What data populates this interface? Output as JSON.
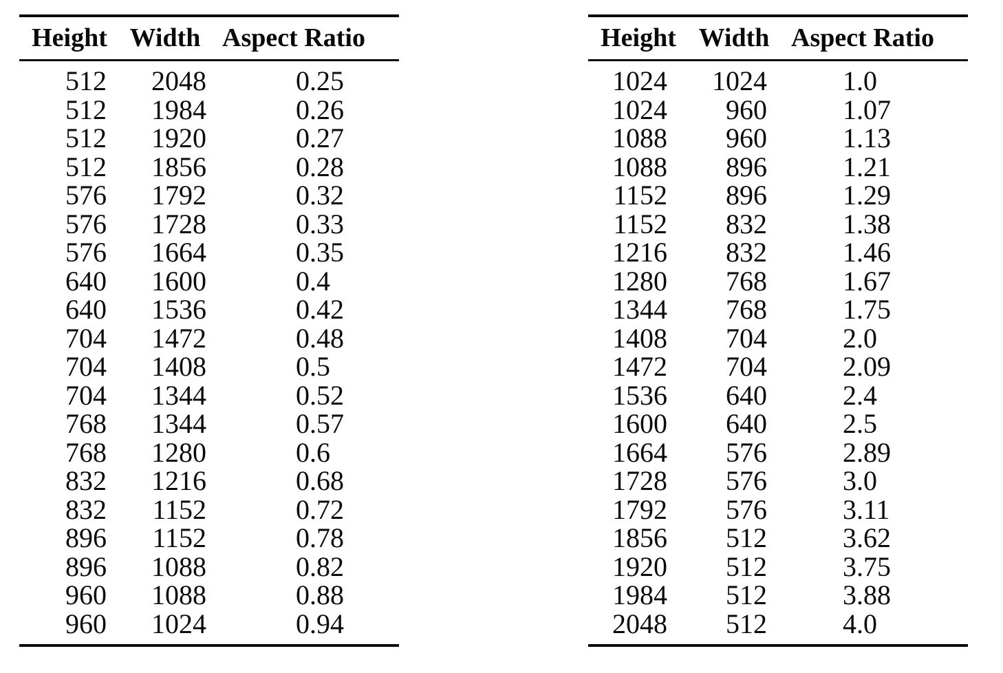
{
  "tables": [
    {
      "columns": [
        "Height",
        "Width",
        "Aspect Ratio"
      ],
      "rows": [
        [
          512,
          2048,
          "0.25"
        ],
        [
          512,
          1984,
          "0.26"
        ],
        [
          512,
          1920,
          "0.27"
        ],
        [
          512,
          1856,
          "0.28"
        ],
        [
          576,
          1792,
          "0.32"
        ],
        [
          576,
          1728,
          "0.33"
        ],
        [
          576,
          1664,
          "0.35"
        ],
        [
          640,
          1600,
          "0.4"
        ],
        [
          640,
          1536,
          "0.42"
        ],
        [
          704,
          1472,
          "0.48"
        ],
        [
          704,
          1408,
          "0.5"
        ],
        [
          704,
          1344,
          "0.52"
        ],
        [
          768,
          1344,
          "0.57"
        ],
        [
          768,
          1280,
          "0.6"
        ],
        [
          832,
          1216,
          "0.68"
        ],
        [
          832,
          1152,
          "0.72"
        ],
        [
          896,
          1152,
          "0.78"
        ],
        [
          896,
          1088,
          "0.82"
        ],
        [
          960,
          1088,
          "0.88"
        ],
        [
          960,
          1024,
          "0.94"
        ]
      ]
    },
    {
      "columns": [
        "Height",
        "Width",
        "Aspect Ratio"
      ],
      "rows": [
        [
          1024,
          1024,
          "1.0"
        ],
        [
          1024,
          960,
          "1.07"
        ],
        [
          1088,
          960,
          "1.13"
        ],
        [
          1088,
          896,
          "1.21"
        ],
        [
          1152,
          896,
          "1.29"
        ],
        [
          1152,
          832,
          "1.38"
        ],
        [
          1216,
          832,
          "1.46"
        ],
        [
          1280,
          768,
          "1.67"
        ],
        [
          1344,
          768,
          "1.75"
        ],
        [
          1408,
          704,
          "2.0"
        ],
        [
          1472,
          704,
          "2.09"
        ],
        [
          1536,
          640,
          "2.4"
        ],
        [
          1600,
          640,
          "2.5"
        ],
        [
          1664,
          576,
          "2.89"
        ],
        [
          1728,
          576,
          "3.0"
        ],
        [
          1792,
          576,
          "3.11"
        ],
        [
          1856,
          512,
          "3.62"
        ],
        [
          1920,
          512,
          "3.75"
        ],
        [
          1984,
          512,
          "3.88"
        ],
        [
          2048,
          512,
          "4.0"
        ]
      ]
    }
  ],
  "colors": {
    "text": "#0a0a0a",
    "background": "#ffffff"
  }
}
